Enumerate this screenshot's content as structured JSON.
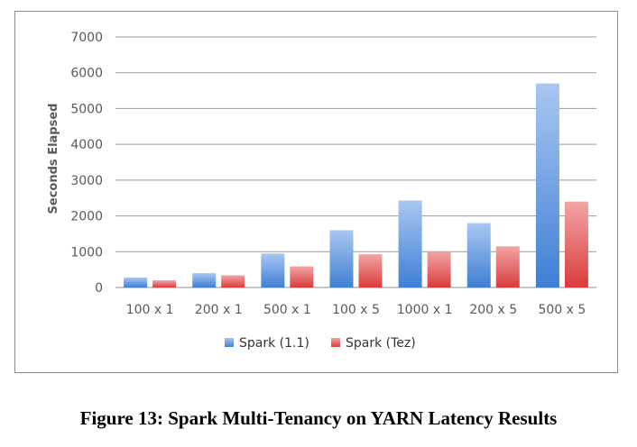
{
  "caption": "Figure 13: Spark Multi-Tenancy on YARN Latency Results",
  "chart_data": {
    "type": "bar",
    "title": "",
    "xlabel": "",
    "ylabel": "Seconds Elapsed",
    "ylim": [
      0,
      7000
    ],
    "yticks": [
      0,
      1000,
      2000,
      3000,
      4000,
      5000,
      6000,
      7000
    ],
    "grid": true,
    "legend_position": "bottom",
    "categories": [
      "100 x 1",
      "200 x 1",
      "500 x 1",
      "100 x 5",
      "1000  x 1",
      "200 x 5",
      "500 x 5"
    ],
    "series": [
      {
        "name": "Spark (1.1)",
        "color": "#5b8fd9",
        "values": [
          280,
          400,
          950,
          1600,
          2430,
          1800,
          5700
        ]
      },
      {
        "name": "Spark (Tez)",
        "color": "#e05454",
        "values": [
          200,
          340,
          590,
          930,
          1000,
          1150,
          2400
        ]
      }
    ]
  }
}
